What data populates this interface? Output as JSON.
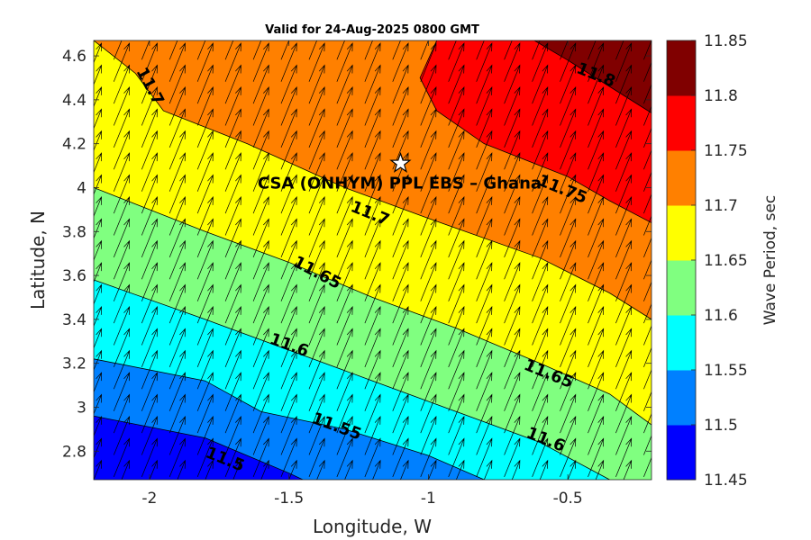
{
  "chart_data": {
    "type": "contour",
    "title": "Valid for 24-Aug-2025 0800 GMT",
    "xlabel": "Longitude, W",
    "ylabel": "Latitude, N",
    "xlim": [
      -2.2,
      -0.2
    ],
    "ylim": [
      2.67,
      4.67
    ],
    "xticks": [
      -2,
      -1.5,
      -1,
      -0.5
    ],
    "xtick_labels": [
      "-2",
      "-1.5",
      "-1",
      "-0.5"
    ],
    "yticks": [
      2.8,
      3,
      3.2,
      3.4,
      3.6,
      3.8,
      4,
      4.2,
      4.4,
      4.6
    ],
    "ytick_labels": [
      "2.8",
      "3",
      "3.2",
      "3.4",
      "3.6",
      "3.8",
      "4",
      "4.2",
      "4.4",
      "4.6"
    ],
    "colorbar": {
      "label": "Wave Period, sec",
      "levels": [
        11.45,
        11.5,
        11.55,
        11.6,
        11.65,
        11.7,
        11.75,
        11.8,
        11.85
      ],
      "level_labels": [
        "11.45",
        "11.5",
        "11.55",
        "11.6",
        "11.65",
        "11.7",
        "11.75",
        "11.8",
        "11.85"
      ],
      "colors": [
        "#0000ff",
        "#0080ff",
        "#00ffff",
        "#80ff80",
        "#ffff00",
        "#ff8000",
        "#ff0000",
        "#800000"
      ]
    },
    "contours": [
      {
        "level": 11.5,
        "points": [
          [
            -2.2,
            2.96
          ],
          [
            -1.8,
            2.86
          ],
          [
            -1.5,
            2.7
          ],
          [
            -1.45,
            2.67
          ]
        ]
      },
      {
        "level": 11.55,
        "points": [
          [
            -2.2,
            3.22
          ],
          [
            -1.8,
            3.12
          ],
          [
            -1.6,
            2.98
          ],
          [
            -1.3,
            2.9
          ],
          [
            -1.0,
            2.78
          ],
          [
            -0.8,
            2.67
          ]
        ]
      },
      {
        "level": 11.6,
        "points": [
          [
            -2.2,
            3.58
          ],
          [
            -1.8,
            3.4
          ],
          [
            -1.5,
            3.26
          ],
          [
            -1.2,
            3.12
          ],
          [
            -0.9,
            2.98
          ],
          [
            -0.6,
            2.84
          ],
          [
            -0.35,
            2.67
          ]
        ]
      },
      {
        "level": 11.65,
        "points": [
          [
            -2.2,
            4.0
          ],
          [
            -1.8,
            3.8
          ],
          [
            -1.5,
            3.66
          ],
          [
            -1.2,
            3.5
          ],
          [
            -0.9,
            3.36
          ],
          [
            -0.6,
            3.2
          ],
          [
            -0.35,
            3.06
          ],
          [
            -0.2,
            2.92
          ]
        ]
      },
      {
        "level": 11.7,
        "points": [
          [
            -2.2,
            4.67
          ],
          [
            -2.05,
            4.52
          ],
          [
            -1.95,
            4.35
          ],
          [
            -1.65,
            4.2
          ],
          [
            -1.3,
            4.0
          ],
          [
            -1.0,
            3.86
          ],
          [
            -0.6,
            3.68
          ],
          [
            -0.35,
            3.52
          ],
          [
            -0.2,
            3.4
          ]
        ]
      },
      {
        "level": 11.75,
        "points": [
          [
            -0.97,
            4.67
          ],
          [
            -1.03,
            4.5
          ],
          [
            -0.97,
            4.35
          ],
          [
            -0.8,
            4.2
          ],
          [
            -0.5,
            4.05
          ],
          [
            -0.35,
            3.94
          ],
          [
            -0.2,
            3.84
          ]
        ]
      },
      {
        "level": 11.8,
        "points": [
          [
            -0.62,
            4.67
          ],
          [
            -0.5,
            4.58
          ],
          [
            -0.3,
            4.42
          ],
          [
            -0.2,
            4.34
          ]
        ]
      }
    ],
    "contour_labels": [
      {
        "text": "11.5",
        "x": -1.73,
        "y": 2.76,
        "angle": 22
      },
      {
        "text": "11.55",
        "x": -1.33,
        "y": 2.91,
        "angle": 20
      },
      {
        "text": "11.6",
        "x": -1.5,
        "y": 3.28,
        "angle": 20
      },
      {
        "text": "11.6",
        "x": -0.58,
        "y": 2.85,
        "angle": 22
      },
      {
        "text": "11.65",
        "x": -1.4,
        "y": 3.61,
        "angle": 28
      },
      {
        "text": "11.65",
        "x": -0.57,
        "y": 3.15,
        "angle": 22
      },
      {
        "text": "11.7",
        "x": -1.21,
        "y": 3.88,
        "angle": 22
      },
      {
        "text": "11.7",
        "x": -2.0,
        "y": 4.46,
        "angle": 62
      },
      {
        "text": "11.75",
        "x": -0.52,
        "y": 3.99,
        "angle": 22
      },
      {
        "text": "11.8",
        "x": -0.4,
        "y": 4.51,
        "angle": 22
      }
    ],
    "site": {
      "name": "CSA (ONHYM) PPL EBS  – Ghana",
      "x": -1.1,
      "y": 4.11,
      "marker": "star"
    },
    "vector_field": {
      "description_units": "direction arrows",
      "dx": 0.1,
      "dy": 0.1,
      "direction_deg_from_north": 22
    }
  }
}
